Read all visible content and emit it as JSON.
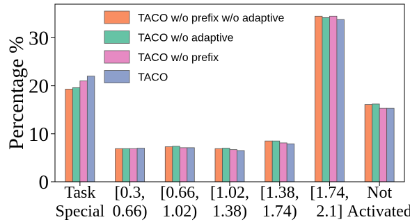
{
  "chart_data": {
    "type": "bar",
    "ylabel": "Percentage %",
    "ylim": [
      0,
      37
    ],
    "yticks": [
      0,
      10,
      20,
      30
    ],
    "categories": [
      [
        "Task",
        "Special"
      ],
      [
        "[0.3,",
        "0.66)"
      ],
      [
        "[0.66,",
        "1.02)"
      ],
      [
        "[1.02,",
        "1.38)"
      ],
      [
        "[1.38,",
        "1.74)"
      ],
      [
        "[1.74,",
        "2.1]"
      ],
      [
        "Not",
        "Activated"
      ]
    ],
    "series": [
      {
        "name": "TACO w/o prefix w/o adaptive",
        "color": "#f98e62",
        "values": [
          19.3,
          6.9,
          7.3,
          6.9,
          8.5,
          34.5,
          16.1
        ]
      },
      {
        "name": "TACO w/o adaptive",
        "color": "#66c3a5",
        "values": [
          19.6,
          6.9,
          7.4,
          7.0,
          8.5,
          34.2,
          16.2
        ]
      },
      {
        "name": "TACO w/o prefix",
        "color": "#e68ac3",
        "values": [
          21.0,
          6.9,
          7.1,
          6.7,
          8.1,
          34.5,
          15.3
        ]
      },
      {
        "name": "TACO",
        "color": "#8d9fcb",
        "values": [
          22.0,
          7.0,
          7.1,
          6.5,
          7.9,
          33.8,
          15.3
        ]
      }
    ],
    "legend_position": "top-left",
    "grid": false
  }
}
